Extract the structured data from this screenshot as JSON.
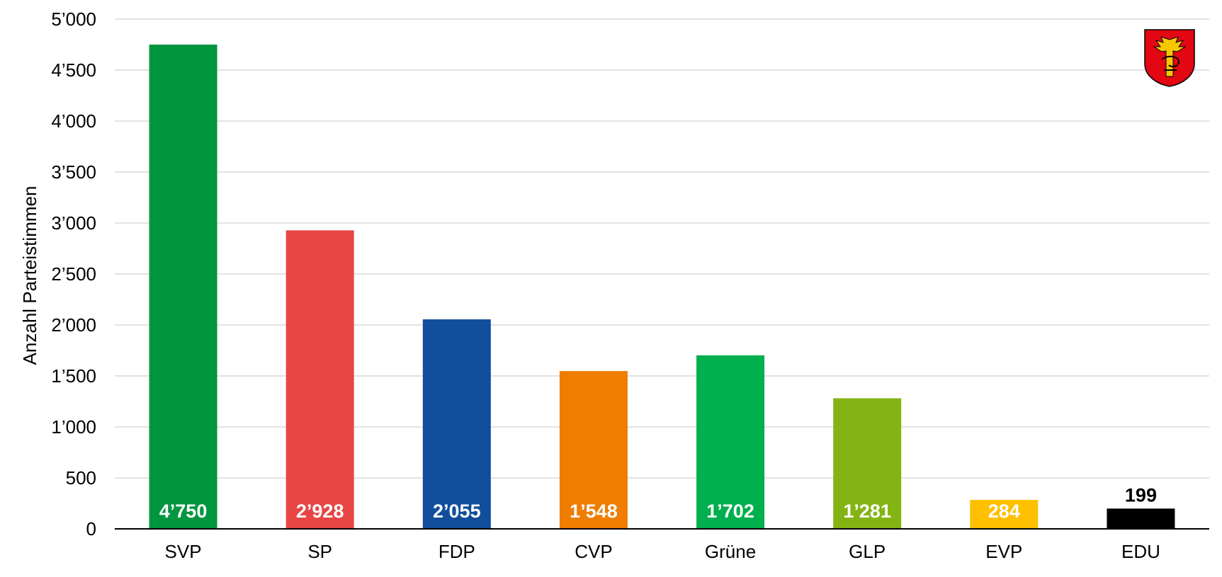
{
  "chart_data": {
    "type": "bar",
    "ylabel": "Anzahl Parteistimmen",
    "ylim": [
      0,
      5000
    ],
    "grid": true,
    "yticks": [
      0,
      500,
      1000,
      1500,
      2000,
      2500,
      3000,
      3500,
      4000,
      4500,
      5000
    ],
    "ytick_labels": [
      "0",
      "500",
      "1’000",
      "1’500",
      "2’000",
      "2’500",
      "3’000",
      "3’500",
      "4’000",
      "4’500",
      "5’000"
    ],
    "categories": [
      "SVP",
      "SP",
      "FDP",
      "CVP",
      "Grüne",
      "GLP",
      "EVP",
      "EDU"
    ],
    "values": [
      4750,
      2928,
      2055,
      1548,
      1702,
      1281,
      284,
      199
    ],
    "value_labels": [
      "4’750",
      "2’928",
      "2’055",
      "1’548",
      "1’702",
      "1’281",
      "284",
      "199"
    ],
    "colors": [
      "#00963F",
      "#E84545",
      "#114E9C",
      "#EE7D00",
      "#00AF4D",
      "#84B414",
      "#FFC000",
      "#000000"
    ],
    "label_colors": [
      "#FFFFFF",
      "#FFFFFF",
      "#FFFFFF",
      "#FFFFFF",
      "#FFFFFF",
      "#FFFFFF",
      "#FFFFFF",
      "#000000"
    ],
    "label_positions": [
      "inside-base",
      "inside-base",
      "inside-base",
      "inside-base",
      "inside-base",
      "inside-base",
      "inside-base",
      "above"
    ]
  },
  "logo": {
    "icon": "coat-of-arms-icon",
    "colors": {
      "field": "#E30613",
      "charge": "#F6C800",
      "outline": "#000000"
    }
  }
}
